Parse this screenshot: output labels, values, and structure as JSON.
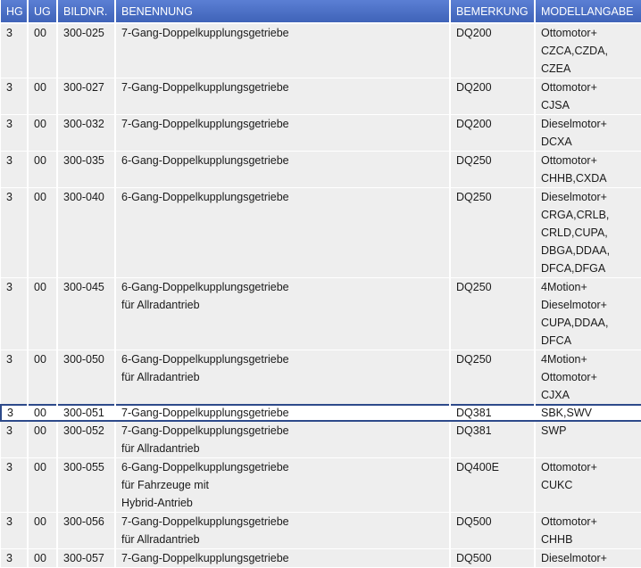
{
  "table": {
    "columns": [
      "HG",
      "UG",
      "BILDNR.",
      "BENENNUNG",
      "BEMERKUNG",
      "MODELLANGABE"
    ],
    "rows": [
      {
        "cells": [
          [
            "3"
          ],
          [
            "00"
          ],
          [
            "300-025"
          ],
          [
            "7-Gang-Doppelkupplungsgetriebe"
          ],
          [
            "DQ200"
          ],
          [
            "Ottomotor+",
            "CZCA,CZDA,",
            "CZEA"
          ]
        ]
      },
      {
        "cells": [
          [
            "3"
          ],
          [
            "00"
          ],
          [
            "300-027"
          ],
          [
            "7-Gang-Doppelkupplungsgetriebe"
          ],
          [
            "DQ200"
          ],
          [
            "Ottomotor+",
            "CJSA"
          ]
        ]
      },
      {
        "cells": [
          [
            "3"
          ],
          [
            "00"
          ],
          [
            "300-032"
          ],
          [
            "7-Gang-Doppelkupplungsgetriebe"
          ],
          [
            "DQ200"
          ],
          [
            "Dieselmotor+",
            "DCXA"
          ]
        ]
      },
      {
        "cells": [
          [
            "3"
          ],
          [
            "00"
          ],
          [
            "300-035"
          ],
          [
            "6-Gang-Doppelkupplungsgetriebe"
          ],
          [
            "DQ250"
          ],
          [
            "Ottomotor+",
            "CHHB,CXDA"
          ]
        ]
      },
      {
        "cells": [
          [
            "3"
          ],
          [
            "00"
          ],
          [
            "300-040"
          ],
          [
            "6-Gang-Doppelkupplungsgetriebe"
          ],
          [
            "DQ250"
          ],
          [
            "Dieselmotor+",
            "CRGA,CRLB,",
            "CRLD,CUPA,",
            "DBGA,DDAA,",
            "DFCA,DFGA"
          ]
        ]
      },
      {
        "cells": [
          [
            "3"
          ],
          [
            "00"
          ],
          [
            "300-045"
          ],
          [
            "6-Gang-Doppelkupplungsgetriebe",
            "für Allradantrieb"
          ],
          [
            "DQ250"
          ],
          [
            "4Motion+",
            "Dieselmotor+",
            "CUPA,DDAA,",
            "DFCA"
          ]
        ]
      },
      {
        "cells": [
          [
            "3"
          ],
          [
            "00"
          ],
          [
            "300-050"
          ],
          [
            "6-Gang-Doppelkupplungsgetriebe",
            "für Allradantrieb"
          ],
          [
            "DQ250"
          ],
          [
            "4Motion+",
            "Ottomotor+",
            "CJXA"
          ]
        ]
      },
      {
        "cells": [
          [
            "3"
          ],
          [
            "00"
          ],
          [
            "300-051"
          ],
          [
            "7-Gang-Doppelkupplungsgetriebe"
          ],
          [
            "DQ381"
          ],
          [
            "SBK,SWV"
          ]
        ],
        "selected": true
      },
      {
        "cells": [
          [
            "3"
          ],
          [
            "00"
          ],
          [
            "300-052"
          ],
          [
            "7-Gang-Doppelkupplungsgetriebe",
            "für Allradantrieb"
          ],
          [
            "DQ381"
          ],
          [
            "SWP"
          ]
        ]
      },
      {
        "cells": [
          [
            "3"
          ],
          [
            "00"
          ],
          [
            "300-055"
          ],
          [
            "6-Gang-Doppelkupplungsgetriebe",
            "für Fahrzeuge mit",
            "Hybrid-Antrieb"
          ],
          [
            "DQ400E"
          ],
          [
            "Ottomotor+",
            "CUKC"
          ]
        ]
      },
      {
        "cells": [
          [
            "3"
          ],
          [
            "00"
          ],
          [
            "300-056"
          ],
          [
            "7-Gang-Doppelkupplungsgetriebe",
            "für Allradantrieb"
          ],
          [
            "DQ500"
          ],
          [
            "Ottomotor+",
            "CHHB"
          ]
        ]
      },
      {
        "cells": [
          [
            "3"
          ],
          [
            "00"
          ],
          [
            "300-057"
          ],
          [
            "7-Gang-Doppelkupplungsgetriebe"
          ],
          [
            "DQ500"
          ],
          [
            "Dieselmotor+"
          ]
        ]
      }
    ]
  }
}
